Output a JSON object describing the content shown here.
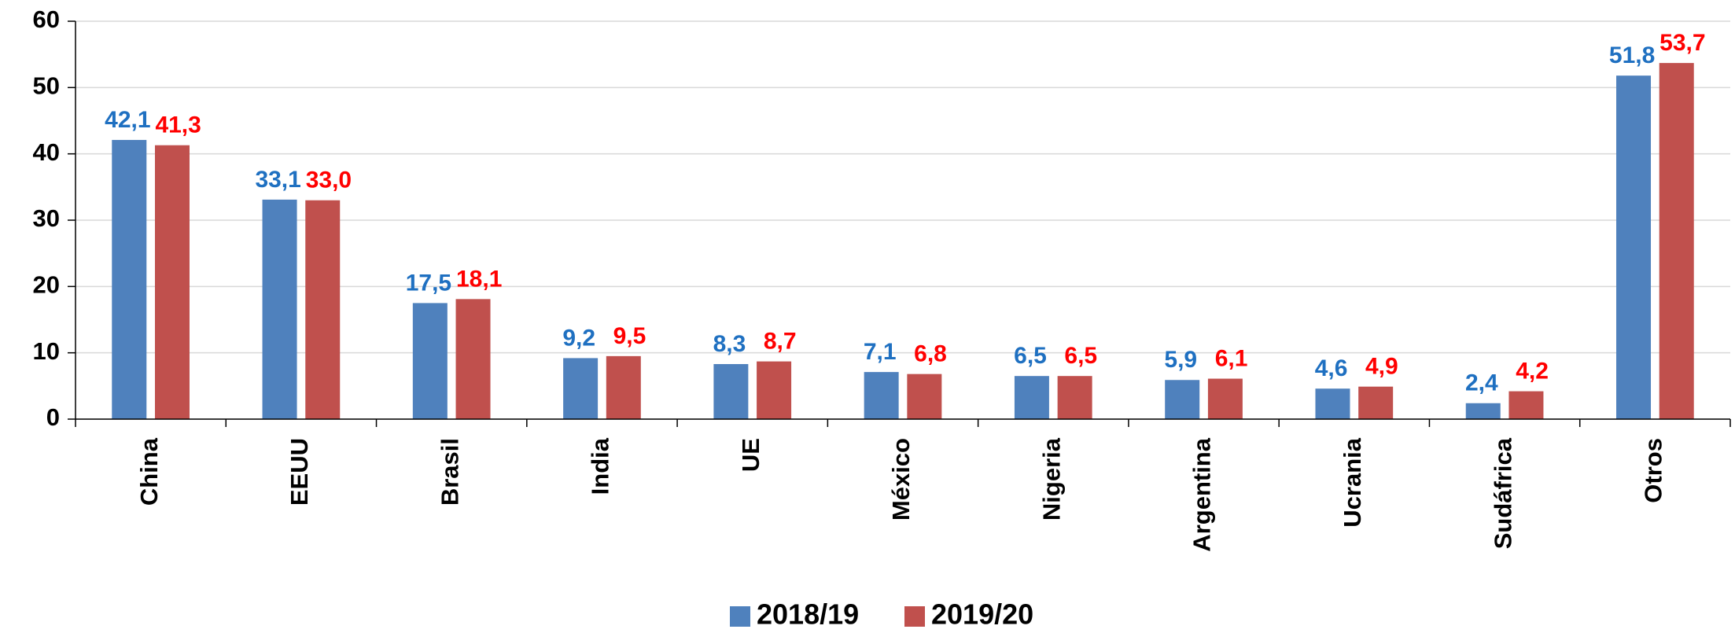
{
  "chart_data": {
    "type": "bar",
    "categories": [
      "China",
      "EEUU",
      "Brasil",
      "India",
      "UE",
      "México",
      "Nigeria",
      "Argentina",
      "Ucrania",
      "Sudáfrica",
      "Otros"
    ],
    "series": [
      {
        "name": "2018/19",
        "color": "#4f81bd",
        "label_color": "#1f70c1",
        "values": [
          42.1,
          33.1,
          17.5,
          9.2,
          8.3,
          7.1,
          6.5,
          5.9,
          4.6,
          2.4,
          51.8
        ],
        "value_labels": [
          "42,1",
          "33,1",
          "17,5",
          "9,2",
          "8,3",
          "7,1",
          "6,5",
          "5,9",
          "4,6",
          "2,4",
          "51,8"
        ]
      },
      {
        "name": "2019/20",
        "color": "#c0504d",
        "label_color": "#ff0000",
        "values": [
          41.3,
          33.0,
          18.1,
          9.5,
          8.7,
          6.8,
          6.5,
          6.1,
          4.9,
          4.2,
          53.7
        ],
        "value_labels": [
          "41,3",
          "33,0",
          "18,1",
          "9,5",
          "8,7",
          "6,8",
          "6,5",
          "6,1",
          "4,9",
          "4,2",
          "53,7"
        ]
      }
    ],
    "ylim": [
      0,
      60
    ],
    "yticks": [
      0,
      10,
      20,
      30,
      40,
      50,
      60
    ],
    "grid": true,
    "legend": "bottom"
  }
}
